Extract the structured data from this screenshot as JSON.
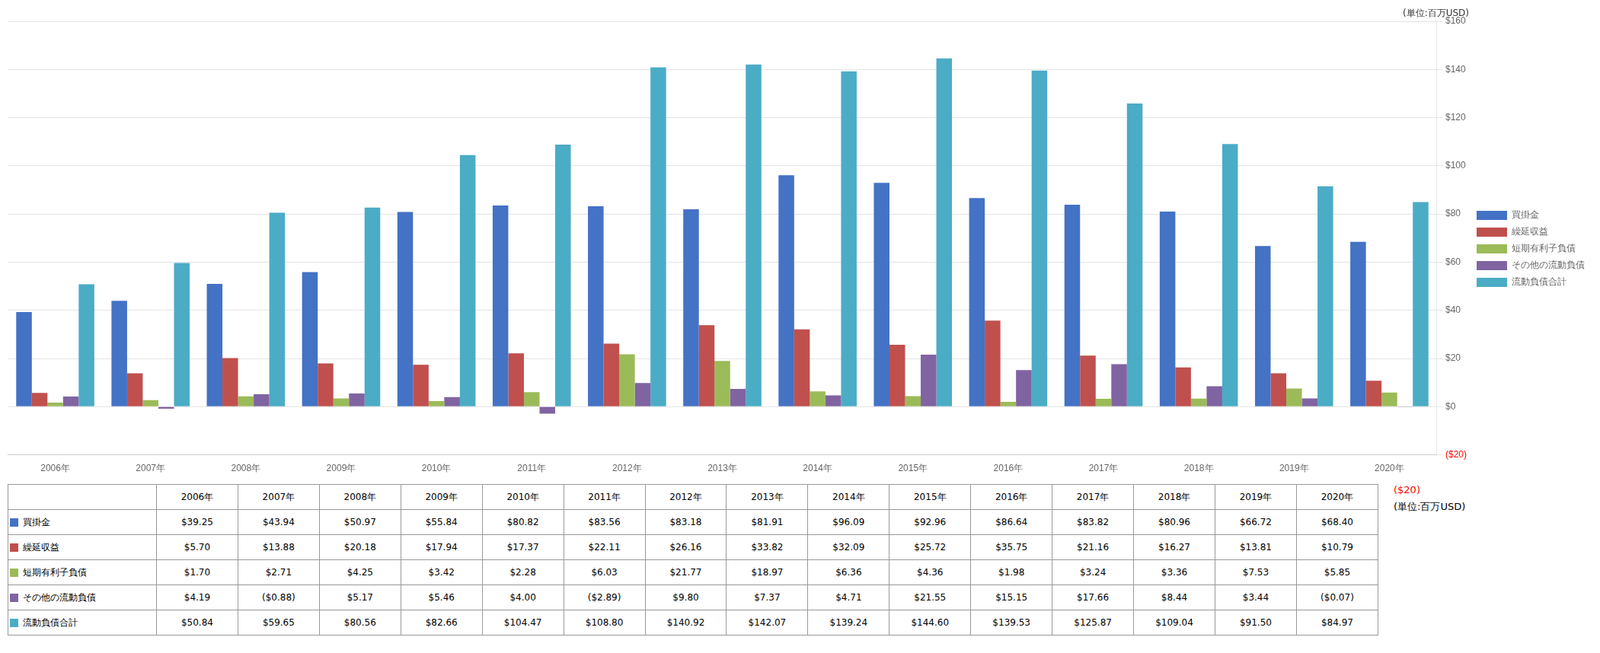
{
  "chart_data": {
    "type": "bar",
    "categories": [
      "2006年",
      "2007年",
      "2008年",
      "2009年",
      "2010年",
      "2011年",
      "2012年",
      "2013年",
      "2014年",
      "2015年",
      "2016年",
      "2017年",
      "2018年",
      "2019年",
      "2020年"
    ],
    "series": [
      {
        "name": "買掛金",
        "color": "#4472C4",
        "values": [
          39.25,
          43.94,
          50.97,
          55.84,
          80.82,
          83.56,
          83.18,
          81.91,
          96.09,
          92.96,
          86.64,
          83.82,
          80.96,
          66.72,
          68.4
        ],
        "value_labels": [
          "$39.25",
          "$43.94",
          "$50.97",
          "$55.84",
          "$80.82",
          "$83.56",
          "$83.18",
          "$81.91",
          "$96.09",
          "$92.96",
          "$86.64",
          "$83.82",
          "$80.96",
          "$66.72",
          "$68.40"
        ]
      },
      {
        "name": "繰延収益",
        "color": "#C0504D",
        "values": [
          5.7,
          13.88,
          20.18,
          17.94,
          17.37,
          22.11,
          26.16,
          33.82,
          32.09,
          25.72,
          35.75,
          21.16,
          16.27,
          13.81,
          10.79
        ],
        "value_labels": [
          "$5.70",
          "$13.88",
          "$20.18",
          "$17.94",
          "$17.37",
          "$22.11",
          "$26.16",
          "$33.82",
          "$32.09",
          "$25.72",
          "$35.75",
          "$21.16",
          "$16.27",
          "$13.81",
          "$10.79"
        ]
      },
      {
        "name": "短期有利子負債",
        "color": "#9BBB59",
        "values": [
          1.7,
          2.71,
          4.25,
          3.42,
          2.28,
          6.03,
          21.77,
          18.97,
          6.36,
          4.36,
          1.98,
          3.24,
          3.36,
          7.53,
          5.85
        ],
        "value_labels": [
          "$1.70",
          "$2.71",
          "$4.25",
          "$3.42",
          "$2.28",
          "$6.03",
          "$21.77",
          "$18.97",
          "$6.36",
          "$4.36",
          "$1.98",
          "$3.24",
          "$3.36",
          "$7.53",
          "$5.85"
        ]
      },
      {
        "name": "その他の流動負債",
        "color": "#8064A2",
        "values": [
          4.19,
          -0.88,
          5.17,
          5.46,
          4.0,
          -2.89,
          9.8,
          7.37,
          4.71,
          21.55,
          15.15,
          17.66,
          8.44,
          3.44,
          -0.07
        ],
        "value_labels": [
          "$4.19",
          "($0.88)",
          "$5.17",
          "$5.46",
          "$4.00",
          "($2.89)",
          "$9.80",
          "$7.37",
          "$4.71",
          "$21.55",
          "$15.15",
          "$17.66",
          "$8.44",
          "$3.44",
          "($0.07)"
        ]
      },
      {
        "name": "流動負債合計",
        "color": "#4BACC6",
        "values": [
          50.84,
          59.65,
          80.56,
          82.66,
          104.47,
          108.8,
          140.92,
          142.07,
          139.24,
          144.6,
          139.53,
          125.87,
          109.04,
          91.5,
          84.97
        ],
        "value_labels": [
          "$50.84",
          "$59.65",
          "$80.56",
          "$82.66",
          "$104.47",
          "$108.80",
          "$140.92",
          "$142.07",
          "$139.24",
          "$144.60",
          "$139.53",
          "$125.87",
          "$109.04",
          "$91.50",
          "$84.97"
        ]
      }
    ],
    "ylim": [
      -20,
      160
    ],
    "yticks": [
      {
        "value": -20,
        "label": "($20)"
      },
      {
        "value": 0,
        "label": "$0"
      },
      {
        "value": 20,
        "label": "$20"
      },
      {
        "value": 40,
        "label": "$40"
      },
      {
        "value": 60,
        "label": "$60"
      },
      {
        "value": 80,
        "label": "$80"
      },
      {
        "value": 100,
        "label": "$100"
      },
      {
        "value": 120,
        "label": "$120"
      },
      {
        "value": 140,
        "label": "$140"
      },
      {
        "value": 160,
        "label": "$160"
      }
    ],
    "ylabel": "(単位:百万USD)",
    "annotations": [
      {
        "text": "($20)",
        "color": "red"
      },
      {
        "text": "(単位:百万USD)"
      }
    ],
    "grid": true,
    "legend": "right"
  }
}
